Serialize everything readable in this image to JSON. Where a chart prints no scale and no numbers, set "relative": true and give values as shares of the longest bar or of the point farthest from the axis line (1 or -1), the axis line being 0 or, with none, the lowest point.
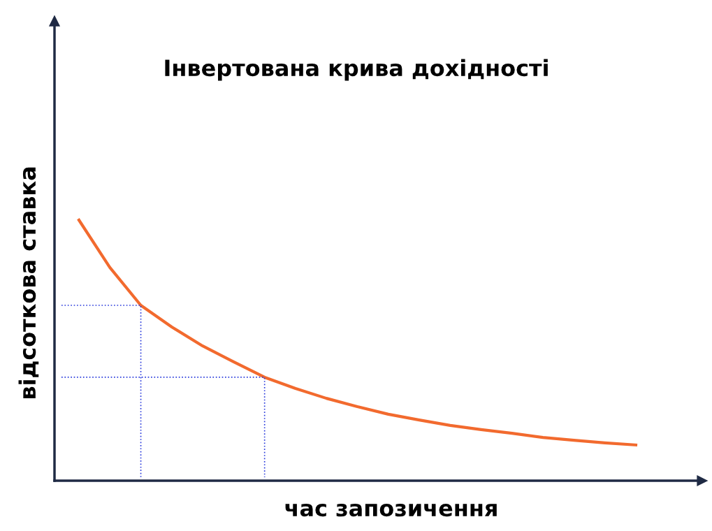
{
  "chart_data": {
    "type": "line",
    "title": "Інвертована крива дохідності",
    "xlabel": "час запозичення",
    "ylabel": "відсоткова ставка",
    "relative": true,
    "categories": [
      null,
      null,
      null,
      null,
      null,
      null,
      null,
      null,
      null,
      null,
      null,
      null,
      null,
      null,
      null,
      null,
      null,
      null,
      null
    ],
    "series": [
      {
        "color": "#f26a2e",
        "values": [
          1.0,
          0.818,
          0.673,
          0.59,
          0.517,
          0.456,
          0.397,
          0.354,
          0.316,
          0.284,
          0.255,
          0.233,
          0.212,
          0.196,
          0.182,
          0.166,
          0.155,
          0.145,
          0.137
        ]
      }
    ],
    "marker": "none",
    "line_style": "solid"
  }
}
